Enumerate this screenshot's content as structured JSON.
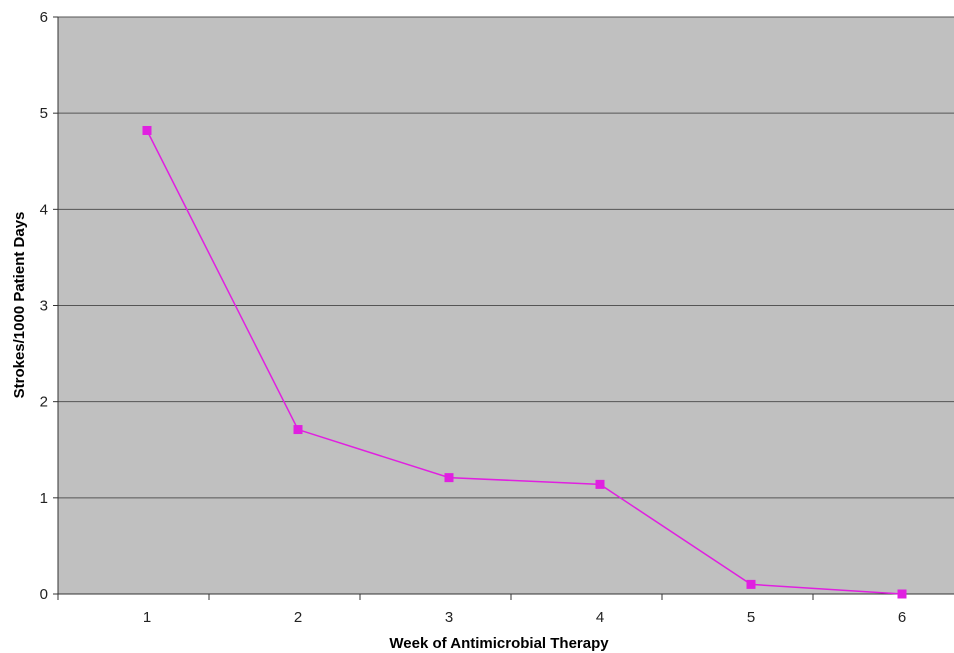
{
  "chart_data": {
    "type": "line",
    "title": "",
    "xlabel": "Week of Antimicrobial Therapy",
    "ylabel": "Strokes/1000 Patient Days",
    "categories": [
      "1",
      "2",
      "3",
      "4",
      "5",
      "6"
    ],
    "series": [
      {
        "values": [
          4.82,
          1.71,
          1.21,
          1.14,
          0.1,
          0.0
        ],
        "color": "#e020e0",
        "marker": "square"
      }
    ],
    "ylim": [
      0,
      6
    ],
    "yticks": [
      "0",
      "1",
      "2",
      "3",
      "4",
      "5",
      "6"
    ],
    "grid": true,
    "legend": "none",
    "plot_background": "#c0c0c0",
    "gridline_color": "#555555"
  }
}
